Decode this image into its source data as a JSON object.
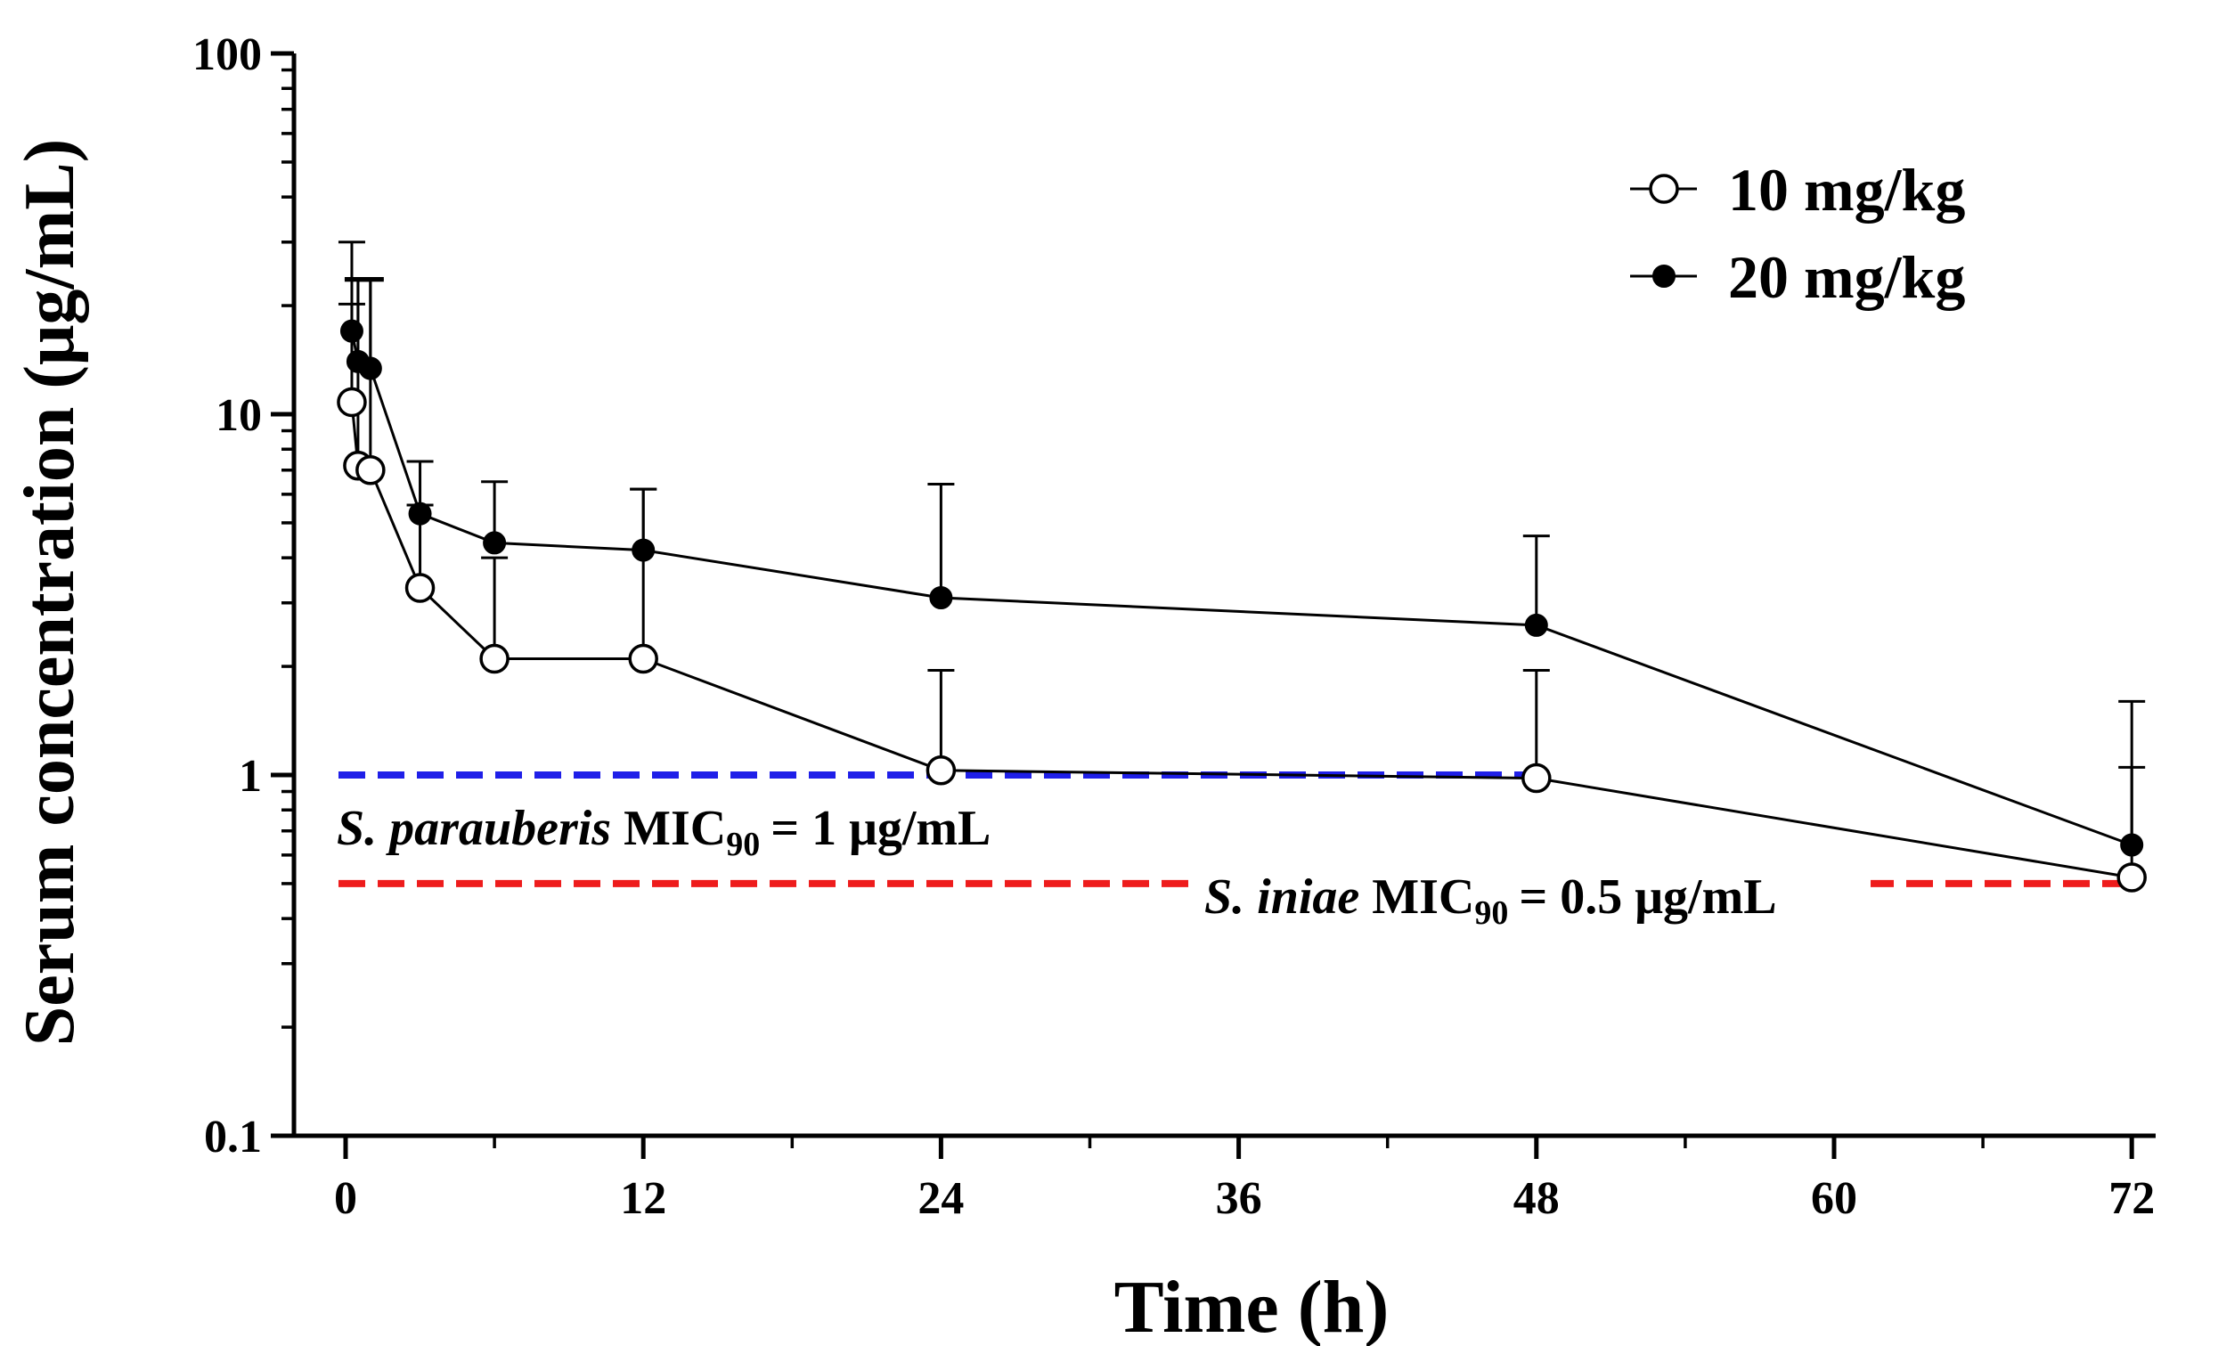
{
  "chart_data": {
    "type": "line",
    "yscale": "log",
    "xlabel": "Time (h)",
    "ylabel": "Serum concentration (μg/mL)",
    "xlim": [
      -2,
      74
    ],
    "ylim": [
      0.1,
      100
    ],
    "xticks": [
      0,
      12,
      24,
      36,
      48,
      60,
      72
    ],
    "xtick_labels": [
      "0",
      "12",
      "24",
      "36",
      "48",
      "60",
      "72"
    ],
    "yticks": [
      0.1,
      1,
      10,
      100
    ],
    "ytick_labels": [
      "0.1",
      "1",
      "10",
      "100"
    ],
    "legend_position": "top-right",
    "series": [
      {
        "name": "10 mg/kg",
        "marker": "open-circle",
        "x": [
          0.25,
          0.5,
          1,
          3,
          6,
          12,
          24,
          48,
          72
        ],
        "y": [
          10.8,
          7.2,
          7.0,
          3.3,
          2.1,
          2.1,
          1.03,
          0.98,
          0.52
        ],
        "err_upper": [
          20.2,
          23.8,
          23.5,
          5.6,
          4.0,
          6.2,
          1.95,
          1.95,
          1.05
        ]
      },
      {
        "name": "20 mg/kg",
        "marker": "filled-circle",
        "x": [
          0.25,
          0.5,
          1,
          3,
          6,
          12,
          24,
          48,
          72
        ],
        "y": [
          17.0,
          14.0,
          13.4,
          5.3,
          4.4,
          4.2,
          3.1,
          2.6,
          0.64
        ],
        "err_upper": [
          30.0,
          23.5,
          23.8,
          7.4,
          6.5,
          6.2,
          6.4,
          4.6,
          1.6
        ]
      }
    ],
    "reference_lines": [
      {
        "name": "S. parauberis MIC90",
        "value": 1,
        "x_range": [
          0,
          48
        ],
        "color": "#1f1fe8",
        "label_italic": "S. parauberis",
        "label_main": "MIC",
        "label_sub": "90",
        "label_value": "= 1 μg/mL"
      },
      {
        "name": "S. iniae MIC90",
        "value": 0.5,
        "x_range": [
          0,
          72
        ],
        "color": "#ee1c1c",
        "label_italic": "S. iniae",
        "label_main": "MIC",
        "label_sub": "90",
        "label_value": "= 0.5 μg/mL"
      }
    ]
  }
}
